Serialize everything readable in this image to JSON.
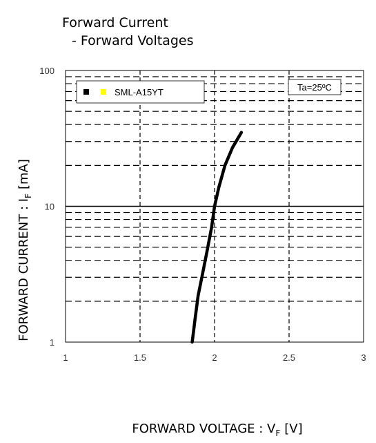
{
  "page": {
    "title_line1": "Forward Current",
    "title_line2": "- Forward Voltages"
  },
  "chart_data": {
    "type": "line",
    "xlabel": "FORWARD VOLTAGE : V",
    "xlabel_sub": "F",
    "xlabel_unit": "[V]",
    "ylabel": "FORWARD CURRENT : I",
    "ylabel_sub": "F",
    "ylabel_unit": "[mA]",
    "xlim": [
      1,
      3
    ],
    "ylim": [
      1,
      100
    ],
    "yscale": "log",
    "x_ticks": [
      1,
      1.5,
      2,
      2.5,
      3
    ],
    "x_tick_labels": [
      "1",
      "1.5",
      "2",
      "2.5",
      "3"
    ],
    "y_ticks": [
      1,
      10,
      100
    ],
    "y_tick_labels": [
      "1",
      "10",
      "100"
    ],
    "grid": true,
    "legend_position": "top-left",
    "annotation": "Ta=25ºC",
    "series": [
      {
        "name": "SML-A15YT",
        "color": "#000000",
        "legend_marker_colors": [
          "#000000",
          "#ffff00"
        ],
        "x": [
          1.85,
          1.87,
          1.89,
          1.92,
          1.95,
          1.98,
          2.0,
          2.03,
          2.07,
          2.12,
          2.18
        ],
        "y": [
          1,
          1.5,
          2.2,
          3.2,
          4.7,
          7,
          10,
          14,
          20,
          27,
          35
        ]
      }
    ]
  }
}
